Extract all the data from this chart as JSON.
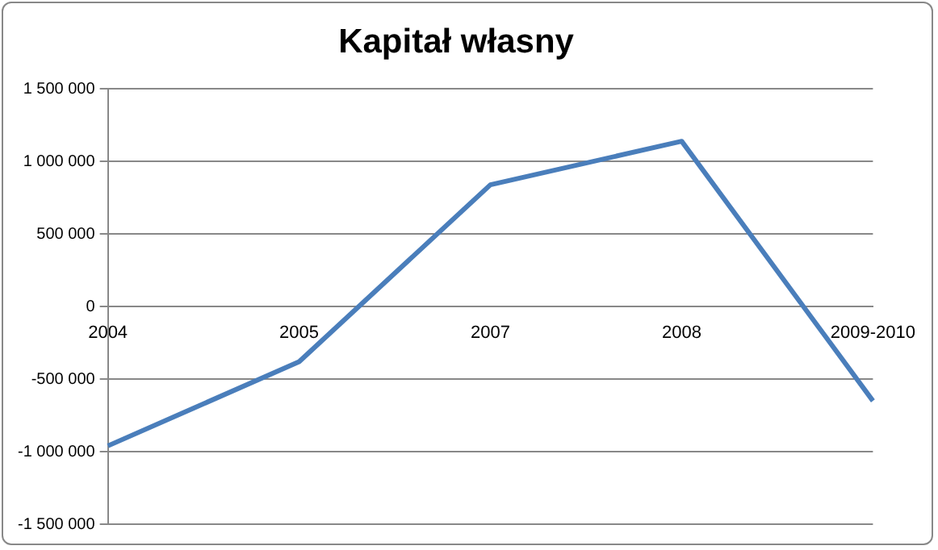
{
  "chart_data": {
    "type": "line",
    "title": "Kapitał własny",
    "categories": [
      "2004",
      "2005",
      "2007",
      "2008",
      "2009-2010"
    ],
    "series": [
      {
        "color": "#4a7ebb",
        "values": [
          -960000,
          -380000,
          840000,
          1140000,
          -650000
        ]
      }
    ],
    "ylim": [
      -1500000,
      1500000
    ],
    "yticks": [
      {
        "value": -1500000,
        "label": "-1 500 000"
      },
      {
        "value": -1000000,
        "label": "-1 000 000"
      },
      {
        "value": -500000,
        "label": "-500 000"
      },
      {
        "value": 0,
        "label": "0"
      },
      {
        "value": 500000,
        "label": "500 000"
      },
      {
        "value": 1000000,
        "label": "1 000 000"
      },
      {
        "value": 1500000,
        "label": "1 500 000"
      }
    ],
    "grid": "y",
    "legend": false,
    "marker": "none",
    "line_style": "solid"
  }
}
